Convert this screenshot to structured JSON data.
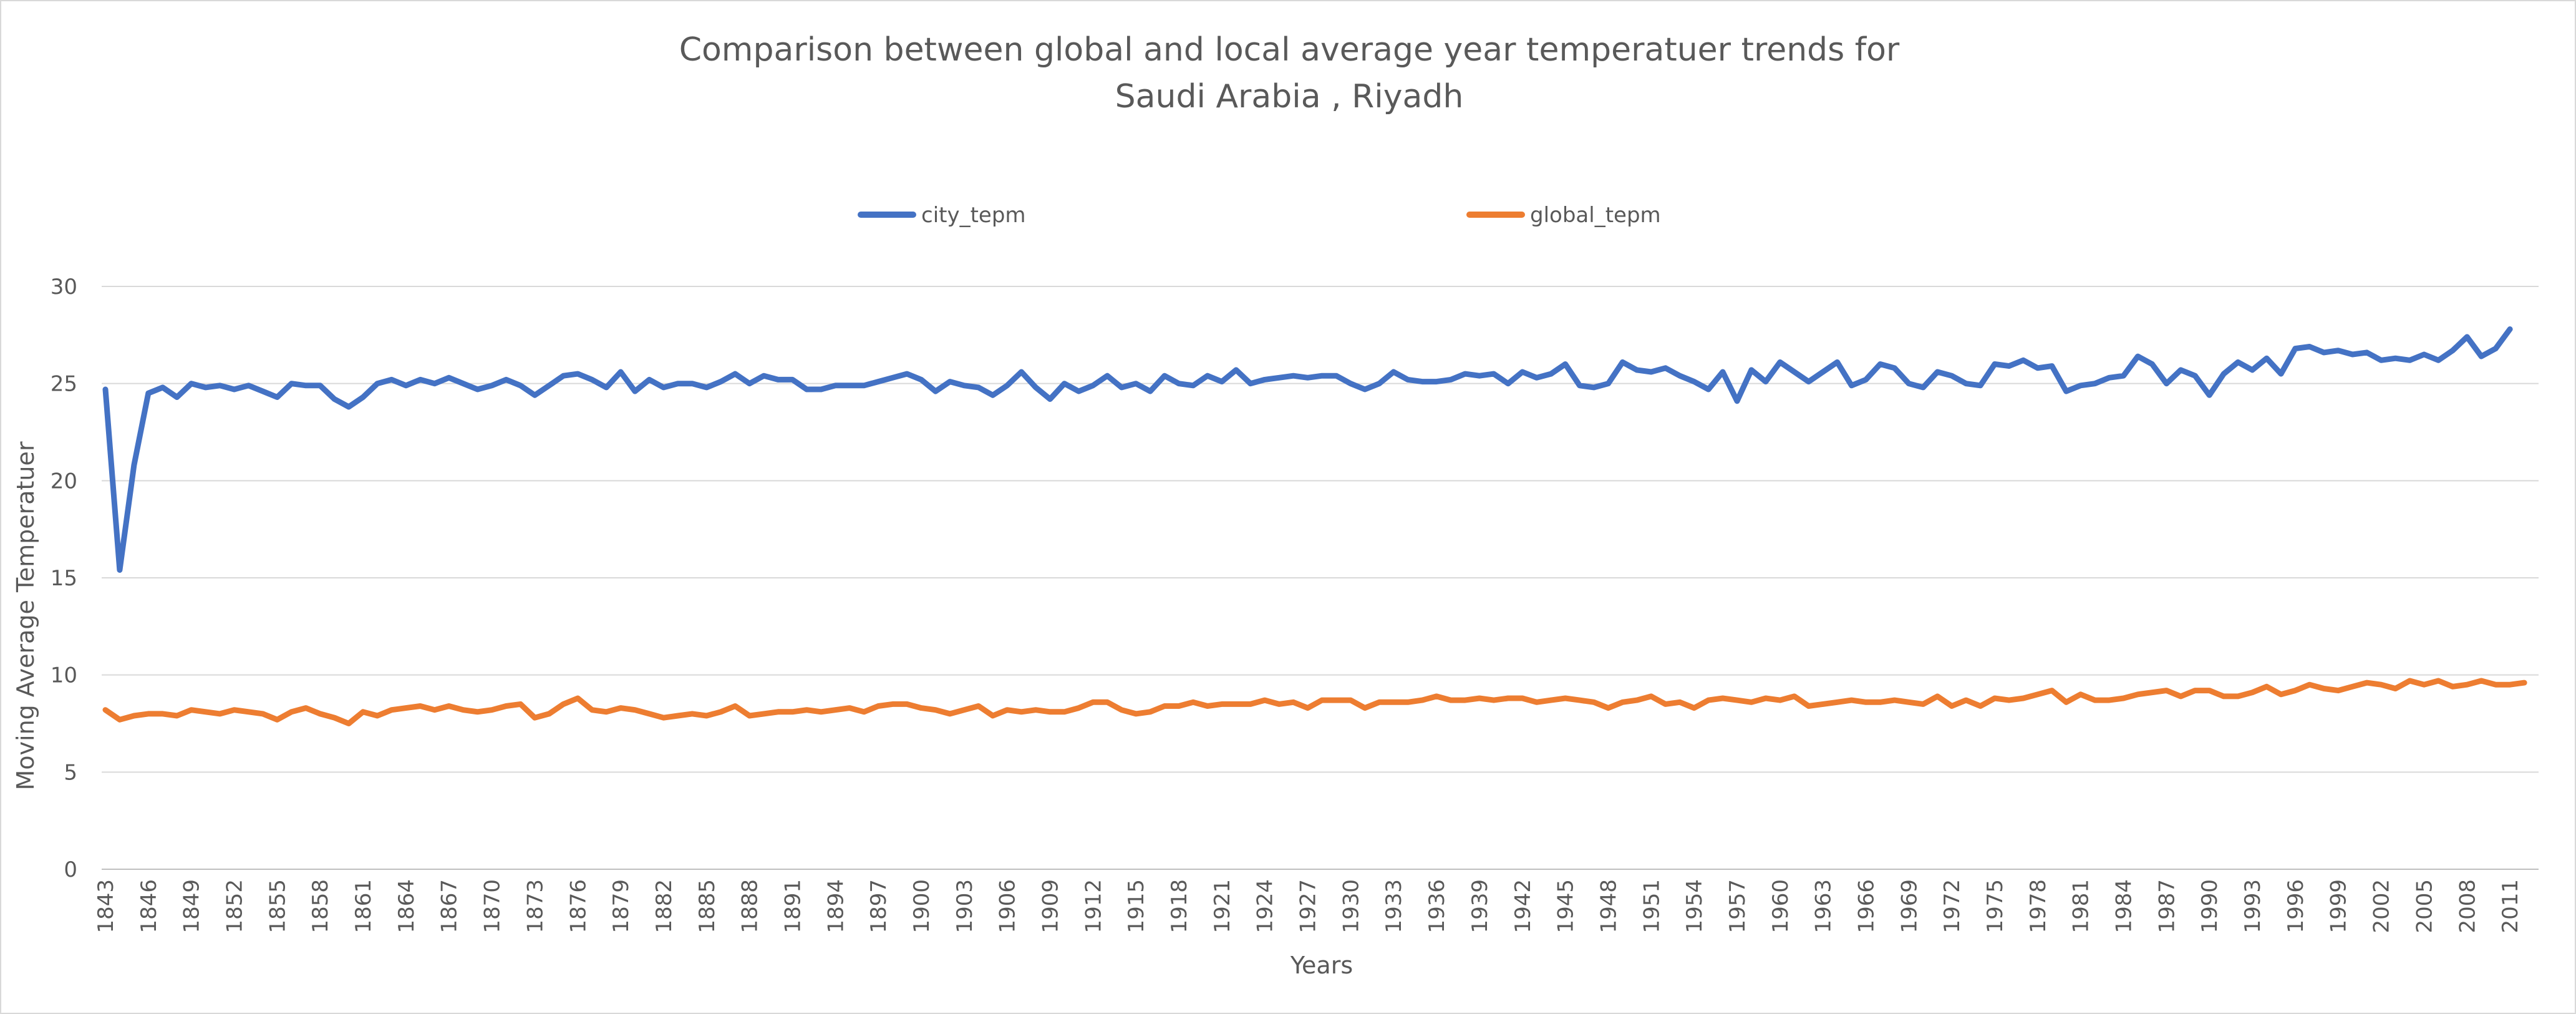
{
  "chart_data": {
    "type": "line",
    "title_lines": [
      "Comparison between global and local average year temperatuer trends for",
      "Saudi Arabia , Riyadh"
    ],
    "xlabel": "Years",
    "ylabel": "Moving Average Temperatuer",
    "ylim": [
      0,
      30
    ],
    "yticks": [
      0,
      5,
      10,
      15,
      20,
      25,
      30
    ],
    "grid": true,
    "legend_position": "top",
    "x_start": 1843,
    "x_end": 2013,
    "xtick_step": 3,
    "series": [
      {
        "name": "city_tepm",
        "color": "#4472C4",
        "values": [
          24.7,
          15.4,
          20.8,
          24.5,
          24.8,
          24.3,
          25.0,
          24.8,
          24.9,
          24.7,
          24.9,
          24.6,
          24.3,
          25.0,
          24.9,
          24.9,
          24.2,
          23.8,
          24.3,
          25.0,
          25.2,
          24.9,
          25.2,
          25.0,
          25.3,
          25.0,
          24.7,
          24.9,
          25.2,
          24.9,
          24.4,
          24.9,
          25.4,
          25.5,
          25.2,
          24.8,
          25.6,
          24.6,
          25.2,
          24.8,
          25.0,
          25.0,
          24.8,
          25.1,
          25.5,
          25.0,
          25.4,
          25.2,
          25.2,
          24.7,
          24.7,
          24.9,
          24.9,
          24.9,
          25.1,
          25.3,
          25.5,
          25.2,
          24.6,
          25.1,
          24.9,
          24.8,
          24.4,
          24.9,
          25.6,
          24.8,
          24.2,
          25.0,
          24.6,
          24.9,
          25.4,
          24.8,
          25.0,
          24.6,
          25.4,
          25.0,
          24.9,
          25.4,
          25.1,
          25.7,
          25.0,
          25.2,
          25.3,
          25.4,
          25.3,
          25.4,
          25.4,
          25.0,
          24.7,
          25.0,
          25.6,
          25.2,
          25.1,
          25.1,
          25.2,
          25.5,
          25.4,
          25.5,
          25.0,
          25.6,
          25.3,
          25.5,
          26.0,
          24.9,
          24.8,
          25.0,
          26.1,
          25.7,
          25.6,
          25.8,
          25.4,
          25.1,
          24.7,
          25.6,
          24.1,
          25.7,
          25.1,
          26.1,
          25.6,
          25.1,
          25.6,
          26.1,
          24.9,
          25.2,
          26.0,
          25.8,
          25.0,
          24.8,
          25.6,
          25.4,
          25.0,
          24.9,
          26.0,
          25.9,
          26.2,
          25.8,
          25.9,
          24.6,
          24.9,
          25.0,
          25.3,
          25.4,
          26.4,
          26.0,
          25.0,
          25.7,
          25.4,
          24.4,
          25.5,
          26.1,
          25.7,
          26.3,
          25.5,
          26.8,
          26.9,
          26.6,
          26.7,
          26.5,
          26.6,
          26.2,
          26.3,
          26.2,
          26.5,
          26.2,
          26.7,
          27.4,
          26.4,
          26.8,
          27.8
        ]
      },
      {
        "name": "global_tepm",
        "color": "#ED7D31",
        "values": [
          8.2,
          7.7,
          7.9,
          8.0,
          8.0,
          7.9,
          8.2,
          8.1,
          8.0,
          8.2,
          8.1,
          8.0,
          7.7,
          8.1,
          8.3,
          8.0,
          7.8,
          7.5,
          8.1,
          7.9,
          8.2,
          8.3,
          8.4,
          8.2,
          8.4,
          8.2,
          8.1,
          8.2,
          8.4,
          8.5,
          7.8,
          8.0,
          8.5,
          8.8,
          8.2,
          8.1,
          8.3,
          8.2,
          8.0,
          7.8,
          7.9,
          8.0,
          7.9,
          8.1,
          8.4,
          7.9,
          8.0,
          8.1,
          8.1,
          8.2,
          8.1,
          8.2,
          8.3,
          8.1,
          8.4,
          8.5,
          8.5,
          8.3,
          8.2,
          8.0,
          8.2,
          8.4,
          7.9,
          8.2,
          8.1,
          8.2,
          8.1,
          8.1,
          8.3,
          8.6,
          8.6,
          8.2,
          8.0,
          8.1,
          8.4,
          8.4,
          8.6,
          8.4,
          8.5,
          8.5,
          8.5,
          8.7,
          8.5,
          8.6,
          8.3,
          8.7,
          8.7,
          8.7,
          8.3,
          8.6,
          8.6,
          8.6,
          8.7,
          8.9,
          8.7,
          8.7,
          8.8,
          8.7,
          8.8,
          8.8,
          8.6,
          8.7,
          8.8,
          8.7,
          8.6,
          8.3,
          8.6,
          8.7,
          8.9,
          8.5,
          8.6,
          8.3,
          8.7,
          8.8,
          8.7,
          8.6,
          8.8,
          8.7,
          8.9,
          8.4,
          8.5,
          8.6,
          8.7,
          8.6,
          8.6,
          8.7,
          8.6,
          8.5,
          8.9,
          8.4,
          8.7,
          8.4,
          8.8,
          8.7,
          8.8,
          9.0,
          9.2,
          8.6,
          9.0,
          8.7,
          8.7,
          8.8,
          9.0,
          9.1,
          9.2,
          8.9,
          9.2,
          9.2,
          8.9,
          8.9,
          9.1,
          9.4,
          9.0,
          9.2,
          9.5,
          9.3,
          9.2,
          9.4,
          9.6,
          9.5,
          9.3,
          9.7,
          9.5,
          9.7,
          9.4,
          9.5,
          9.7,
          9.5,
          9.5,
          9.6
        ]
      }
    ]
  }
}
